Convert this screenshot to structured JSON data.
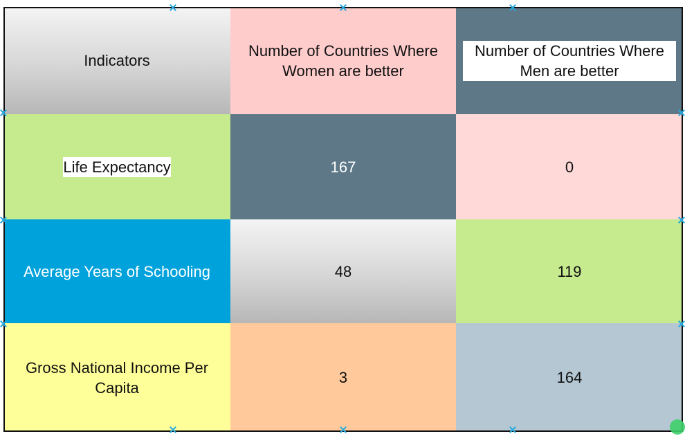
{
  "table": {
    "header": {
      "col1": "Indicators",
      "col2": "Number of Countries Where Women are better",
      "col3": "Number of Countries Where Men are better"
    },
    "rows": [
      {
        "indicator": "Life Expectancy",
        "women": "167",
        "men": "0"
      },
      {
        "indicator": "Average Years of Schooling",
        "women": "48",
        "men": "119"
      },
      {
        "indicator": "Gross National Income Per Capita",
        "women": "3",
        "men": "164"
      }
    ]
  },
  "colors": {
    "gray_gradient": "#d6d6d6",
    "pink": "#ffcccc",
    "slate": "#5e7887",
    "pale_pink": "#ffd8d8",
    "green": "#c6ea8e",
    "blue": "#00a2dc",
    "yellow": "#ffff99",
    "peach": "#ffc99c",
    "light_slate": "#b4c7d3",
    "handle": "#26a9e0"
  },
  "icons": {
    "selection_handle": "x-cross-handle-icon",
    "connector": "green-connection-dot-icon"
  }
}
